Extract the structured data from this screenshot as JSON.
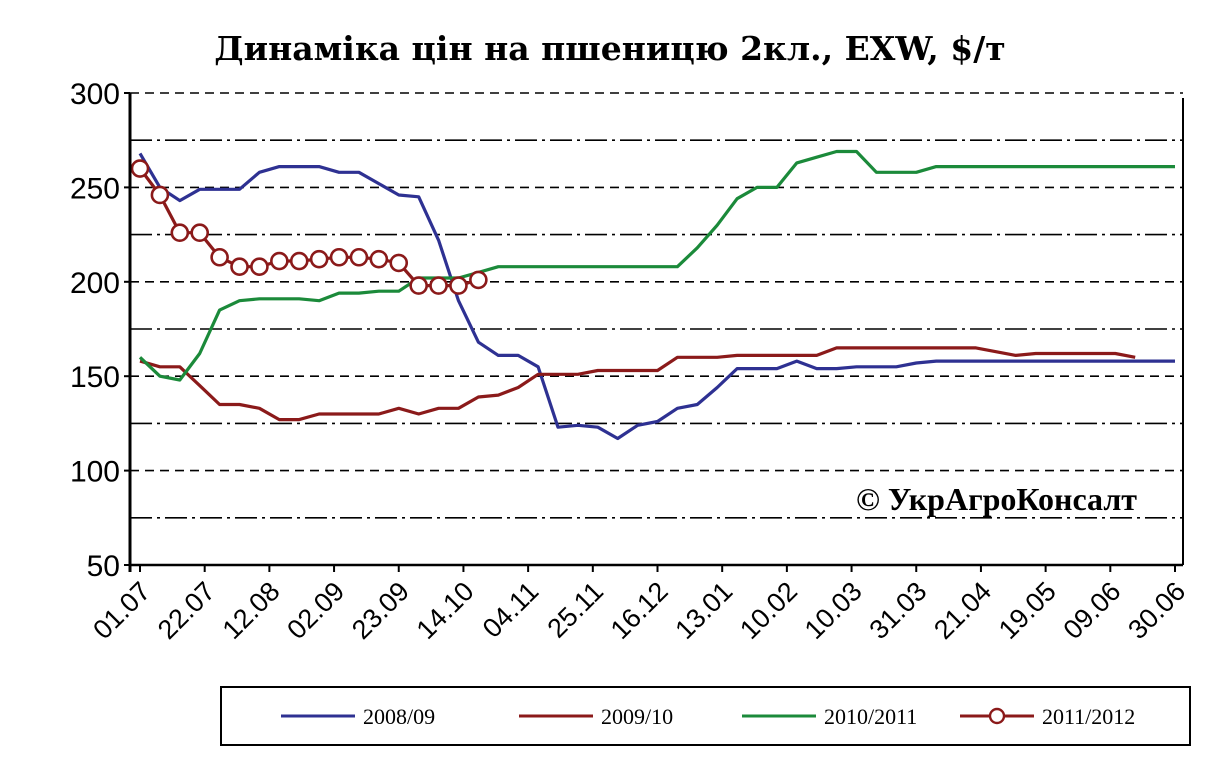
{
  "chart_data": {
    "type": "line",
    "title": "Динаміка цін на пшеницю 2кл., EXW, $/т",
    "watermark": "© УкрАгроКонсалт",
    "ylim": [
      50,
      300
    ],
    "yticks": [
      50,
      100,
      150,
      200,
      250,
      300
    ],
    "minor_grid": [
      75,
      125,
      175,
      225,
      275
    ],
    "grid": true,
    "legend_position": "bottom",
    "x_tick_labels": [
      "01.07",
      "22.07",
      "12.08",
      "02.09",
      "23.09",
      "14.10",
      "04.11",
      "25.11",
      "16.12",
      "13.01",
      "10.02",
      "10.03",
      "31.03",
      "21.04",
      "19.05",
      "09.06",
      "30.06"
    ],
    "x_count": 53,
    "series": [
      {
        "name": "2008/09",
        "color": "#2e3192",
        "marker": "none",
        "values": [
          268,
          250,
          243,
          249,
          249,
          249,
          258,
          261,
          261,
          261,
          258,
          258,
          252,
          246,
          245,
          222,
          190,
          168,
          161,
          161,
          155,
          123,
          124,
          123,
          117,
          124,
          126,
          133,
          135,
          144,
          154,
          154,
          154,
          158,
          154,
          154,
          155,
          155,
          155,
          157,
          158,
          158,
          158,
          158,
          158,
          158,
          158,
          158,
          158,
          158,
          158,
          158,
          158
        ]
      },
      {
        "name": "2009/10",
        "color": "#8b1a1a",
        "marker": "none",
        "values": [
          158,
          155,
          155,
          145,
          135,
          135,
          133,
          127,
          127,
          130,
          130,
          130,
          130,
          133,
          130,
          133,
          133,
          139,
          140,
          144,
          151,
          151,
          151,
          153,
          153,
          153,
          153,
          160,
          160,
          160,
          161,
          161,
          161,
          161,
          161,
          165,
          165,
          165,
          165,
          165,
          165,
          165,
          165,
          163,
          161,
          162,
          162,
          162,
          162,
          162,
          160,
          null,
          null
        ]
      },
      {
        "name": "2010/2011",
        "color": "#1b8a3a",
        "marker": "none",
        "values": [
          160,
          150,
          148,
          162,
          185,
          190,
          191,
          191,
          191,
          190,
          194,
          194,
          195,
          195,
          202,
          202,
          202,
          205,
          208,
          208,
          208,
          208,
          208,
          208,
          208,
          208,
          208,
          208,
          218,
          230,
          244,
          250,
          250,
          263,
          266,
          269,
          269,
          258,
          258,
          258,
          261,
          261,
          261,
          261,
          261,
          261,
          261,
          261,
          261,
          261,
          261,
          261,
          261
        ]
      },
      {
        "name": "2011/2012",
        "color": "#8b1a1a",
        "marker": "circle",
        "values": [
          260,
          246,
          226,
          226,
          213,
          208,
          208,
          211,
          211,
          212,
          213,
          213,
          212,
          210,
          198,
          198,
          198,
          201
        ]
      }
    ]
  }
}
